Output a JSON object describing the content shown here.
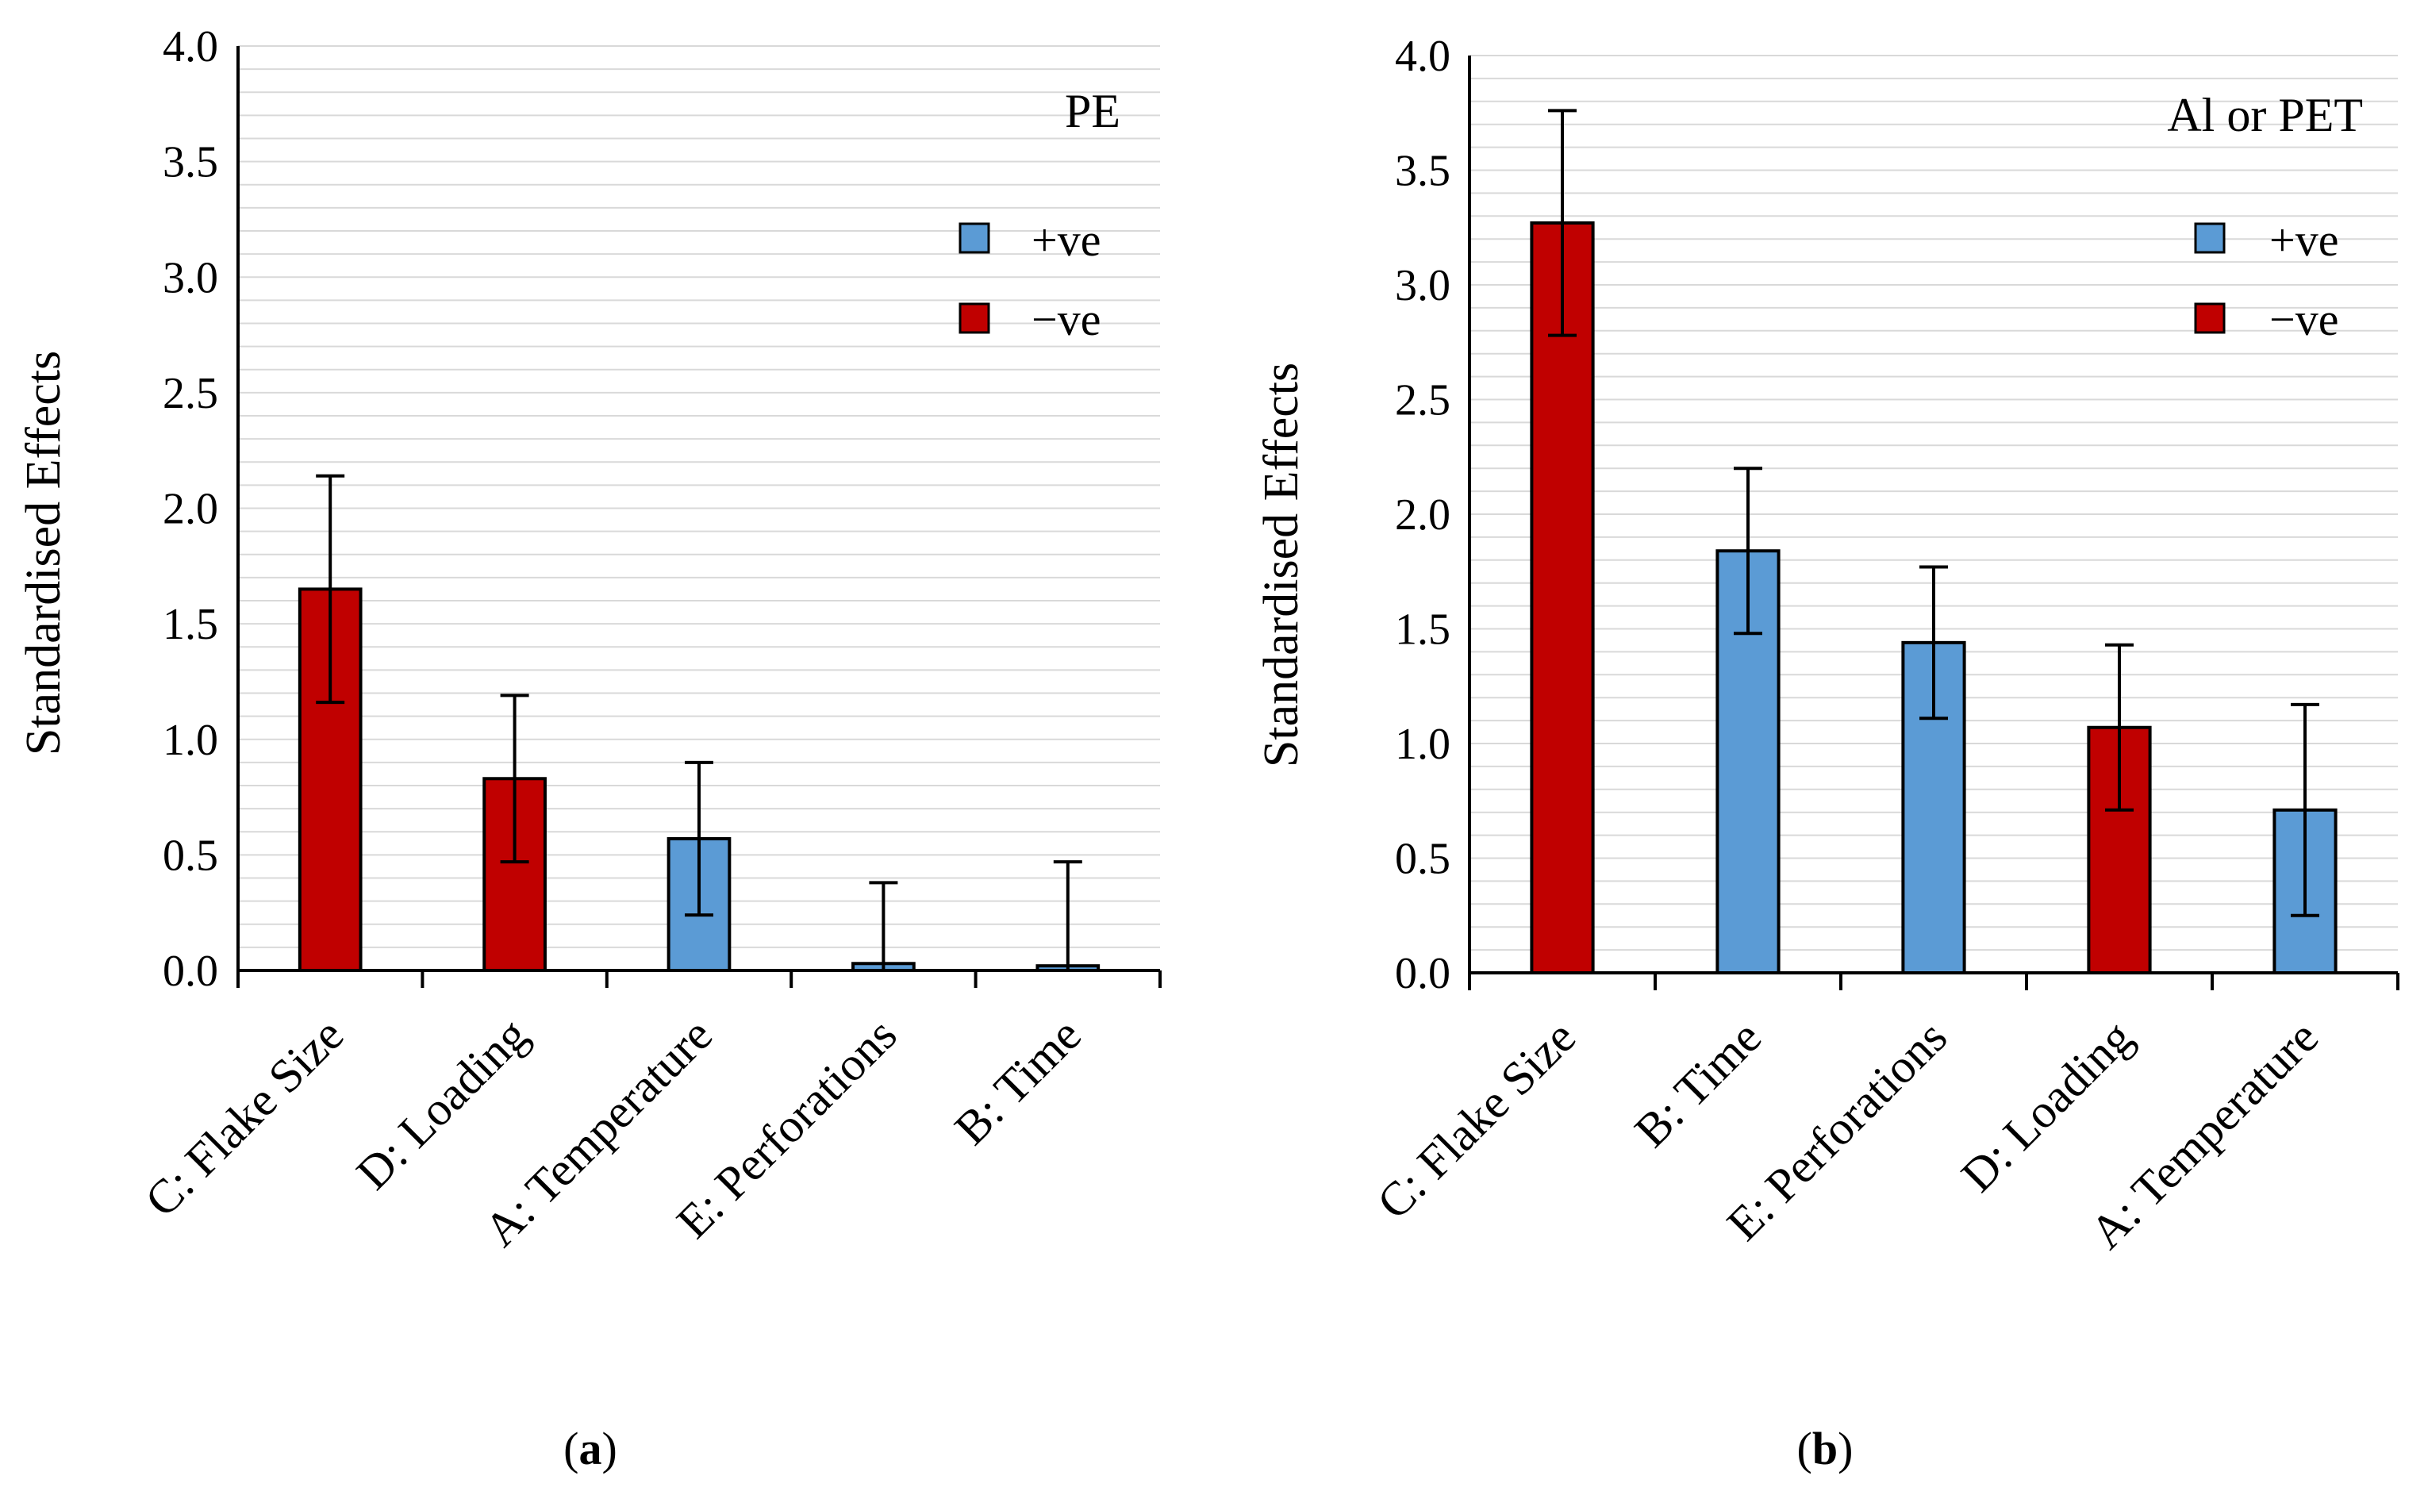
{
  "chart_data": [
    {
      "type": "bar",
      "panel_caption": "a",
      "tag": "PE",
      "ylabel": "Standardised Effects",
      "ylim": [
        0,
        4.0
      ],
      "yticks": [
        "0.0",
        "0.5",
        "1.0",
        "1.5",
        "2.0",
        "2.5",
        "3.0",
        "3.5",
        "4.0"
      ],
      "categories": [
        "C: Flake Size",
        "D: Loading",
        "A: Temperature",
        "E: Perforations",
        "B: Time"
      ],
      "values": [
        1.65,
        0.83,
        0.57,
        0.03,
        0.02
      ],
      "errors": [
        0.49,
        0.36,
        0.33,
        0.35,
        0.45
      ],
      "signs": [
        "-ve",
        "-ve",
        "+ve",
        "+ve",
        "+ve"
      ],
      "legend": [
        {
          "label": "+ve",
          "color": "#5b9bd5"
        },
        {
          "label": "−ve",
          "color": "#c00000"
        }
      ]
    },
    {
      "type": "bar",
      "panel_caption": "b",
      "tag": "Al or PET",
      "ylabel": "Standardised Effects",
      "ylim": [
        0,
        4.0
      ],
      "yticks": [
        "0.0",
        "0.5",
        "1.0",
        "1.5",
        "2.0",
        "2.5",
        "3.0",
        "3.5",
        "4.0"
      ],
      "categories": [
        "C: Flake Size",
        "B: Time",
        "E: Perforations",
        "D: Loading",
        "A: Temperature"
      ],
      "values": [
        3.27,
        1.84,
        1.44,
        1.07,
        0.71
      ],
      "errors": [
        0.49,
        0.36,
        0.33,
        0.36,
        0.46
      ],
      "signs": [
        "-ve",
        "+ve",
        "+ve",
        "-ve",
        "+ve"
      ],
      "legend": [
        {
          "label": "+ve",
          "color": "#5b9bd5"
        },
        {
          "label": "−ve",
          "color": "#c00000"
        }
      ]
    }
  ],
  "colors": {
    "positive": "#5b9bd5",
    "negative": "#c00000",
    "grid": "#d9d9d9"
  }
}
